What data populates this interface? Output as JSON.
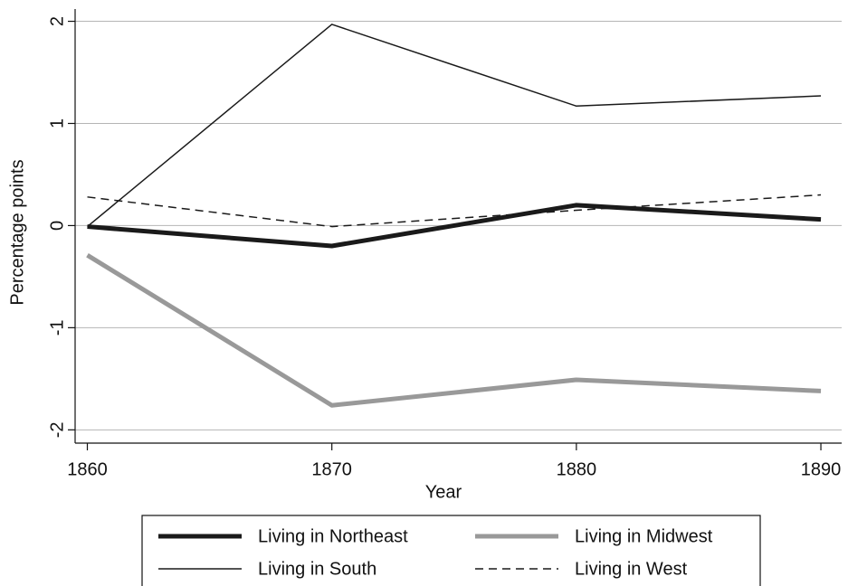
{
  "chart_data": {
    "type": "line",
    "x_label": "Year",
    "y_label": "Percentage points",
    "x": [
      1860,
      1870,
      1880,
      1890
    ],
    "series": [
      {
        "name": "Living in Northeast",
        "color": "#1a1a1a",
        "linewidth": 5,
        "dash": false,
        "values": [
          -0.01,
          -0.2,
          0.2,
          0.06
        ]
      },
      {
        "name": "Living in Midwest",
        "color": "#999999",
        "linewidth": 5,
        "dash": false,
        "values": [
          -0.29,
          -1.76,
          -1.51,
          -1.62
        ]
      },
      {
        "name": "Living in South",
        "color": "#1a1a1a",
        "linewidth": 1.5,
        "dash": false,
        "values": [
          -0.01,
          1.97,
          1.17,
          1.27
        ]
      },
      {
        "name": "Living in West",
        "color": "#1a1a1a",
        "linewidth": 1.5,
        "dash": true,
        "values": [
          0.28,
          -0.01,
          0.15,
          0.3
        ]
      }
    ],
    "xlim": [
      1859.5,
      1890.85
    ],
    "xticks": [
      1860,
      1870,
      1880,
      1890
    ],
    "ylim": [
      -2.13,
      2.12
    ],
    "yticks": [
      -2,
      -1,
      0,
      1,
      2
    ],
    "grid": true,
    "legend": "bottom"
  }
}
